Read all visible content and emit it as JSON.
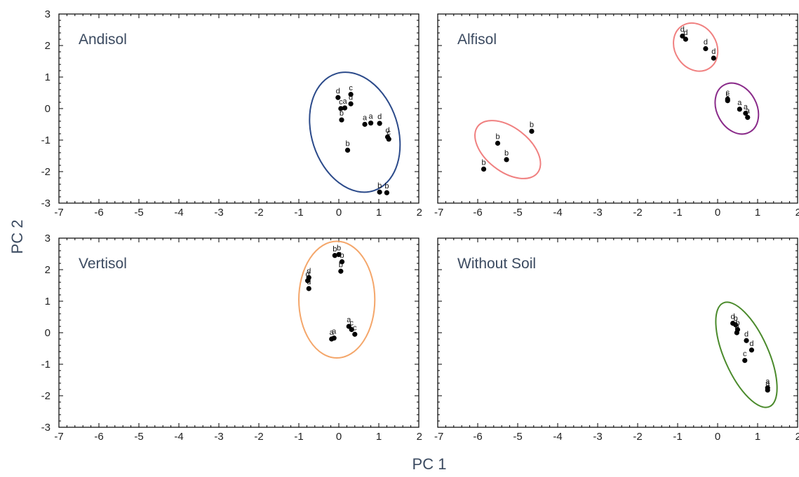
{
  "chart_data": {
    "type": "scatter",
    "xlabel": "PC 1",
    "ylabel": "PC 2",
    "xlim": [
      -7,
      2
    ],
    "ylim": [
      -3,
      3
    ],
    "xticks": [
      "-7",
      "-6",
      "-5",
      "-4",
      "-3",
      "-2",
      "-1",
      "0",
      "1",
      "2"
    ],
    "yticks": [
      "3",
      "2",
      "1",
      "0",
      "-1",
      "-2",
      "-3"
    ],
    "grid": false,
    "panels": [
      {
        "title": "Andisol",
        "ellipses": [
          {
            "cx": 0.4,
            "cy": -0.75,
            "rx": 1.08,
            "ry": 1.95,
            "rotation_deg": -18,
            "color": "#2b4a8a"
          }
        ],
        "points": [
          {
            "x": -0.02,
            "y": 0.35,
            "label": "d"
          },
          {
            "x": 0.3,
            "y": 0.45,
            "label": "c"
          },
          {
            "x": 0.05,
            "y": 0.0,
            "label": "c"
          },
          {
            "x": 0.15,
            "y": 0.02,
            "label": "a"
          },
          {
            "x": 0.3,
            "y": 0.15,
            "label": "d"
          },
          {
            "x": 0.07,
            "y": -0.36,
            "label": "b"
          },
          {
            "x": 0.65,
            "y": -0.5,
            "label": "a"
          },
          {
            "x": 0.8,
            "y": -0.46,
            "label": "a"
          },
          {
            "x": 1.02,
            "y": -0.47,
            "label": "d"
          },
          {
            "x": 1.22,
            "y": -0.9,
            "label": "d"
          },
          {
            "x": 1.25,
            "y": -0.97,
            "label": "c"
          },
          {
            "x": 0.22,
            "y": -1.32,
            "label": "b"
          },
          {
            "x": 1.02,
            "y": -2.65,
            "label": "b"
          },
          {
            "x": 1.2,
            "y": -2.67,
            "label": "b"
          }
        ]
      },
      {
        "title": "Alfisol",
        "ellipses": [
          {
            "cx": -0.55,
            "cy": 1.95,
            "rx": 0.52,
            "ry": 0.8,
            "rotation_deg": -32,
            "color": "#f08080"
          },
          {
            "cx": 0.48,
            "cy": 0.0,
            "rx": 0.5,
            "ry": 0.85,
            "rotation_deg": -28,
            "color": "#8a2b8a"
          },
          {
            "cx": -5.25,
            "cy": -1.3,
            "rx": 0.55,
            "ry": 1.2,
            "rotation_deg": -52,
            "color": "#f08080"
          }
        ],
        "points": [
          {
            "x": -0.88,
            "y": 2.3,
            "label": "d"
          },
          {
            "x": -0.8,
            "y": 2.2,
            "label": "d"
          },
          {
            "x": -0.3,
            "y": 1.9,
            "label": "d"
          },
          {
            "x": -0.1,
            "y": 1.6,
            "label": "d"
          },
          {
            "x": 0.25,
            "y": 0.3,
            "label": "c"
          },
          {
            "x": 0.25,
            "y": 0.25,
            "label": "c"
          },
          {
            "x": 0.55,
            "y": -0.02,
            "label": "a"
          },
          {
            "x": 0.7,
            "y": -0.15,
            "label": "a"
          },
          {
            "x": 0.75,
            "y": -0.28,
            "label": "a"
          },
          {
            "x": -4.65,
            "y": -0.72,
            "label": "b"
          },
          {
            "x": -5.5,
            "y": -1.1,
            "label": "b"
          },
          {
            "x": -5.28,
            "y": -1.62,
            "label": "b"
          },
          {
            "x": -5.85,
            "y": -1.92,
            "label": "b"
          }
        ]
      },
      {
        "title": "Vertisol",
        "ellipses": [
          {
            "cx": -0.05,
            "cy": 1.05,
            "rx": 0.95,
            "ry": 1.85,
            "rotation_deg": 0,
            "color": "#f4a66a"
          }
        ],
        "points": [
          {
            "x": -0.75,
            "y": 1.75,
            "label": "d"
          },
          {
            "x": -0.78,
            "y": 1.65,
            "label": "d"
          },
          {
            "x": -0.75,
            "y": 1.4,
            "label": "d"
          },
          {
            "x": -0.1,
            "y": 2.45,
            "label": "b"
          },
          {
            "x": 0.0,
            "y": 2.48,
            "label": "b"
          },
          {
            "x": 0.08,
            "y": 2.25,
            "label": "b"
          },
          {
            "x": 0.05,
            "y": 1.95,
            "label": "b"
          },
          {
            "x": -0.18,
            "y": -0.2,
            "label": "a"
          },
          {
            "x": -0.12,
            "y": -0.17,
            "label": "a"
          },
          {
            "x": 0.25,
            "y": 0.2,
            "label": "a"
          },
          {
            "x": 0.32,
            "y": 0.1,
            "label": "c"
          },
          {
            "x": 0.4,
            "y": -0.05,
            "label": "c"
          }
        ]
      },
      {
        "title": "Without Soil",
        "ellipses": [
          {
            "cx": 0.72,
            "cy": -0.7,
            "rx": 0.55,
            "ry": 1.8,
            "rotation_deg": -24,
            "color": "#4a8a2b"
          }
        ],
        "points": [
          {
            "x": 0.38,
            "y": 0.3,
            "label": "d"
          },
          {
            "x": 0.45,
            "y": 0.25,
            "label": "b"
          },
          {
            "x": 0.5,
            "y": 0.1,
            "label": "b"
          },
          {
            "x": 0.48,
            "y": 0.0,
            "label": "b"
          },
          {
            "x": 0.72,
            "y": -0.25,
            "label": "d"
          },
          {
            "x": 0.85,
            "y": -0.55,
            "label": "d"
          },
          {
            "x": 0.68,
            "y": -0.88,
            "label": "c"
          },
          {
            "x": 1.25,
            "y": -1.75,
            "label": "a"
          },
          {
            "x": 1.25,
            "y": -1.82,
            "label": "a"
          }
        ]
      }
    ]
  }
}
